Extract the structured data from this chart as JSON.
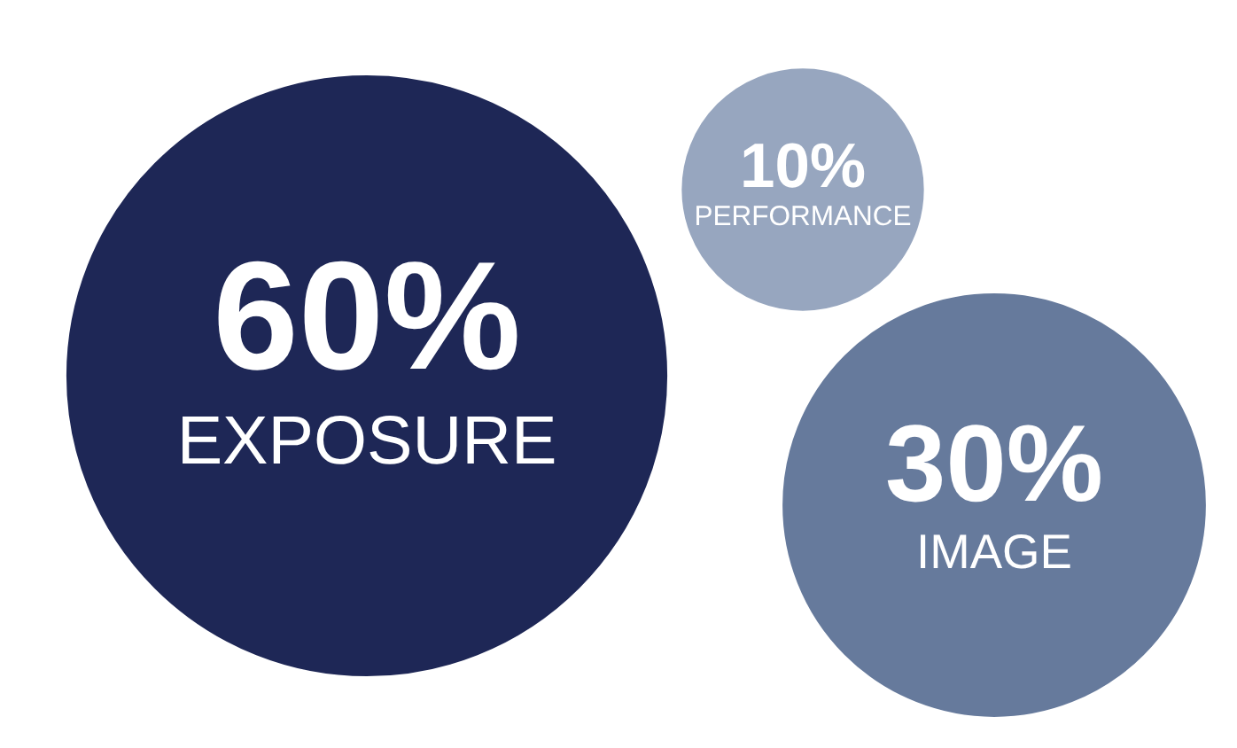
{
  "chart_data": {
    "type": "other",
    "categories": [
      "EXPOSURE",
      "PERFORMANCE",
      "IMAGE"
    ],
    "values": [
      60,
      10,
      30
    ],
    "value_labels": [
      "60%",
      "10%",
      "30%"
    ],
    "colors": [
      "#1e2756",
      "#97a6bf",
      "#667a9c"
    ]
  }
}
